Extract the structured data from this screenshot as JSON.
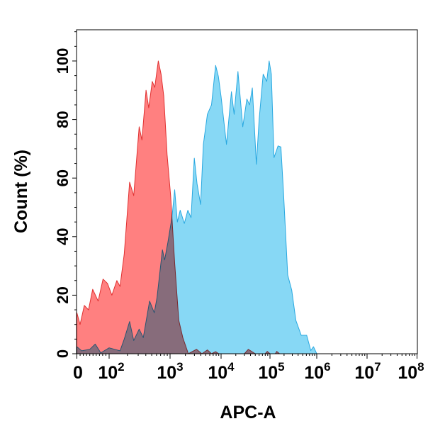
{
  "chart_data": {
    "type": "area",
    "title": "",
    "xlabel": "APC-A",
    "ylabel": "Count  (%)",
    "x_scale": "biexponential",
    "xlim": [
      0,
      100000000
    ],
    "ylim": [
      0,
      110
    ],
    "grid": false,
    "legend": "none",
    "x_ticks": [
      {
        "value": 0,
        "base": "0",
        "exp": ""
      },
      {
        "value": 100,
        "base": "10",
        "exp": "2"
      },
      {
        "value": 1000,
        "base": "10",
        "exp": "3"
      },
      {
        "value": 10000,
        "base": "10",
        "exp": "4"
      },
      {
        "value": 100000,
        "base": "10",
        "exp": "5"
      },
      {
        "value": 1000000,
        "base": "10",
        "exp": "6"
      },
      {
        "value": 10000000,
        "base": "10",
        "exp": "7"
      },
      {
        "value": 100000000,
        "base": "10",
        "exp": "8"
      }
    ],
    "y_ticks": [
      "0",
      "20",
      "40",
      "60",
      "80",
      "100"
    ],
    "series": [
      {
        "color": "#29a8e0",
        "fill": "#87d8f5",
        "points": [
          [
            0,
            2.4
          ],
          [
            15,
            1
          ],
          [
            40,
            1.5
          ],
          [
            57,
            3.3
          ],
          [
            74,
            0.3
          ],
          [
            100,
            2
          ],
          [
            151,
            1
          ],
          [
            177,
            5
          ],
          [
            217,
            11
          ],
          [
            253,
            4.5
          ],
          [
            311,
            8.4
          ],
          [
            363,
            5.5
          ],
          [
            461,
            18
          ],
          [
            550,
            14
          ],
          [
            609,
            19
          ],
          [
            749,
            35.5
          ],
          [
            814,
            32
          ],
          [
            921,
            38
          ],
          [
            1090,
            46.6
          ],
          [
            1230,
            56
          ],
          [
            1390,
            45
          ],
          [
            1580,
            49
          ],
          [
            1900,
            44.5
          ],
          [
            2230,
            49
          ],
          [
            2580,
            46.5
          ],
          [
            2990,
            66.8
          ],
          [
            3380,
            58
          ],
          [
            3970,
            51
          ],
          [
            4490,
            71.5
          ],
          [
            5400,
            81.8
          ],
          [
            6500,
            85
          ],
          [
            7820,
            98.5
          ],
          [
            8850,
            94.7
          ],
          [
            10000,
            87.8
          ],
          [
            12900,
            71.5
          ],
          [
            16300,
            89.5
          ],
          [
            18500,
            81.8
          ],
          [
            22100,
            96.4
          ],
          [
            27800,
            77.5
          ],
          [
            33700,
            87
          ],
          [
            38300,
            85
          ],
          [
            43500,
            90.8
          ],
          [
            52700,
            64.7
          ],
          [
            60000,
            80
          ],
          [
            72600,
            95.5
          ],
          [
            85800,
            93
          ],
          [
            96200,
            100
          ],
          [
            107000,
            95.5
          ],
          [
            122000,
            67
          ],
          [
            149000,
            71
          ],
          [
            171000,
            70.6
          ],
          [
            195000,
            55
          ],
          [
            239000,
            26.9
          ],
          [
            292000,
            21.7
          ],
          [
            357000,
            11.4
          ],
          [
            466000,
            6.3
          ],
          [
            610000,
            6.3
          ],
          [
            745000,
            1.1
          ],
          [
            851000,
            2.4
          ],
          [
            1000000,
            0
          ]
        ]
      },
      {
        "color": "#e03030",
        "fill": "#ff8080",
        "points": [
          [
            0,
            14
          ],
          [
            10,
            10
          ],
          [
            23,
            16.5
          ],
          [
            36,
            15
          ],
          [
            49,
            22
          ],
          [
            66,
            18
          ],
          [
            81,
            25.5
          ],
          [
            95,
            24
          ],
          [
            111,
            20
          ],
          [
            134,
            25
          ],
          [
            151,
            23
          ],
          [
            177,
            34
          ],
          [
            217,
            58.6
          ],
          [
            253,
            54
          ],
          [
            311,
            77.5
          ],
          [
            345,
            73
          ],
          [
            403,
            90
          ],
          [
            447,
            84
          ],
          [
            511,
            93
          ],
          [
            561,
            91
          ],
          [
            641,
            100
          ],
          [
            711,
            95.5
          ],
          [
            789,
            88
          ],
          [
            893,
            68
          ],
          [
            1025,
            54
          ],
          [
            1233,
            31
          ],
          [
            1483,
            11.4
          ],
          [
            1783,
            5.4
          ],
          [
            2282,
            0
          ],
          [
            3300,
            1.5
          ],
          [
            4200,
            0
          ],
          [
            5400,
            1.3
          ],
          [
            6500,
            0
          ],
          [
            7820,
            0.7
          ],
          [
            9000,
            0
          ],
          [
            30000,
            0
          ],
          [
            36000,
            1.5
          ],
          [
            50000,
            0
          ],
          [
            80000,
            0
          ],
          [
            88000,
            0.8
          ],
          [
            100000,
            0
          ],
          [
            130000,
            0
          ],
          [
            140000,
            0.8
          ],
          [
            160000,
            0
          ]
        ]
      }
    ]
  }
}
